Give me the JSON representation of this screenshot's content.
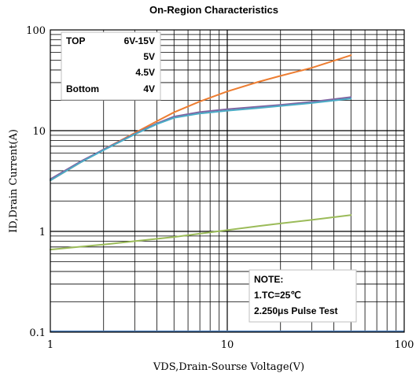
{
  "chart_data": {
    "type": "line",
    "title": "On-Region Characteristics",
    "xlabel": "VDS,Drain-Sourse Voltage(V)",
    "ylabel": "ID,Drain Current(A)",
    "x_scale": "log",
    "y_scale": "log",
    "xlim": [
      1,
      100
    ],
    "ylim": [
      0.1,
      100
    ],
    "x_ticks": [
      {
        "value": 1,
        "label": "1"
      },
      {
        "value": 10,
        "label": "10"
      },
      {
        "value": 100,
        "label": "100"
      }
    ],
    "y_ticks": [
      {
        "value": 0.1,
        "label": "0.1"
      },
      {
        "value": 1,
        "label": "1"
      },
      {
        "value": 10,
        "label": "10"
      },
      {
        "value": 100,
        "label": "100"
      }
    ],
    "grid": true,
    "series": [
      {
        "name": "6V-15V",
        "color": "#ED7D31",
        "x": [
          1,
          1.5,
          2,
          3,
          4,
          5,
          7,
          10,
          15,
          20,
          30,
          50
        ],
        "y": [
          3.2,
          4.9,
          6.5,
          9.5,
          12.4,
          15.2,
          19.5,
          24.5,
          30.5,
          35,
          42,
          56
        ]
      },
      {
        "name": "5V",
        "color": "#8064A2",
        "x": [
          1,
          1.5,
          2,
          3,
          4,
          5,
          7,
          10,
          15,
          20,
          30,
          50
        ],
        "y": [
          3.3,
          5,
          6.5,
          9.3,
          11.8,
          13.8,
          15.3,
          16.3,
          17.3,
          18,
          19.3,
          21.5
        ]
      },
      {
        "name": "4.5V",
        "color": "#4BACC6",
        "x": [
          1,
          1.5,
          2,
          3,
          4,
          5,
          7,
          10,
          15,
          20,
          30,
          50
        ],
        "y": [
          3.2,
          4.9,
          6.4,
          9.2,
          11.6,
          13.4,
          14.8,
          15.8,
          16.8,
          17.6,
          18.8,
          20.8
        ]
      },
      {
        "name": "4V",
        "color": "#9BBB59",
        "x": [
          1,
          2,
          3,
          5,
          7,
          10,
          15,
          20,
          30,
          50
        ],
        "y": [
          0.66,
          0.74,
          0.8,
          0.88,
          0.95,
          1.03,
          1.13,
          1.2,
          1.3,
          1.45
        ]
      }
    ],
    "legend": {
      "placement": "top-left",
      "header_top": "TOP",
      "header_bottom": "Bottom",
      "entries": [
        "6V-15V",
        "5V",
        "4.5V",
        "4V"
      ]
    },
    "note": {
      "placement": "bottom-right",
      "lines": [
        "NOTE:",
        "1.TC=25℃",
        "2.250μs Pulse Test"
      ]
    },
    "baseline_color": "#4F81BD"
  }
}
